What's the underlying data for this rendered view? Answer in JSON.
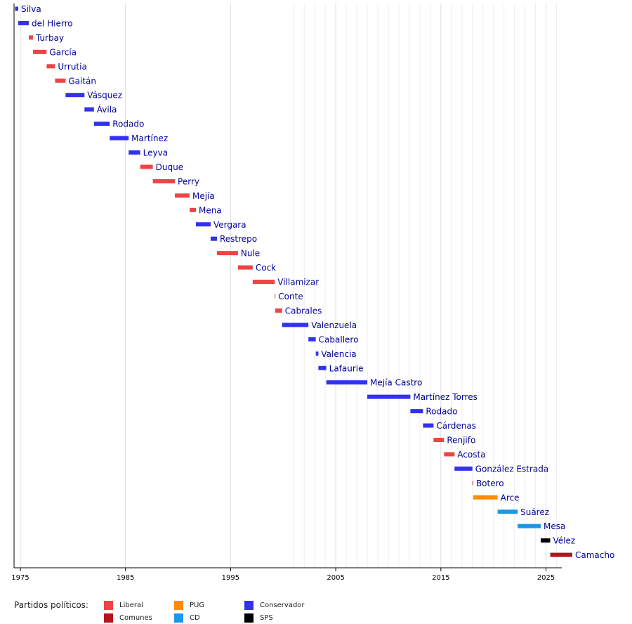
{
  "chart_data": {
    "type": "timeline",
    "title": "",
    "xlabel": "",
    "ylabel": "",
    "xlim": [
      1974.4,
      2026.5
    ],
    "x_ticks": [
      1975,
      1985,
      1995,
      2005,
      2015,
      2025
    ],
    "grid": "vertical",
    "legend_placement": "bottom",
    "bars": [
      {
        "name": "Silva",
        "party": "Conservador",
        "start": 1974.5,
        "end": 1974.8
      },
      {
        "name": "del Hierro",
        "party": "Conservador",
        "start": 1974.8,
        "end": 1975.8
      },
      {
        "name": "Turbay",
        "party": "Liberal",
        "start": 1975.8,
        "end": 1976.2
      },
      {
        "name": "García",
        "party": "Liberal",
        "start": 1976.2,
        "end": 1977.5
      },
      {
        "name": "Urrutia",
        "party": "Liberal",
        "start": 1977.5,
        "end": 1978.3
      },
      {
        "name": "Gaitán",
        "party": "Liberal",
        "start": 1978.3,
        "end": 1979.3
      },
      {
        "name": "Vásquez",
        "party": "Conservador",
        "start": 1979.3,
        "end": 1981.1
      },
      {
        "name": "Ávila",
        "party": "Conservador",
        "start": 1981.1,
        "end": 1982.0
      },
      {
        "name": "Rodado",
        "party": "Conservador",
        "start": 1982.0,
        "end": 1983.5
      },
      {
        "name": "Martínez",
        "party": "Conservador",
        "start": 1983.5,
        "end": 1985.3
      },
      {
        "name": "Leyva",
        "party": "Conservador",
        "start": 1985.3,
        "end": 1986.4
      },
      {
        "name": "Duque",
        "party": "Liberal",
        "start": 1986.4,
        "end": 1987.6
      },
      {
        "name": "Perry",
        "party": "Liberal",
        "start": 1987.6,
        "end": 1989.7
      },
      {
        "name": "Mejía",
        "party": "Liberal",
        "start": 1989.7,
        "end": 1991.1
      },
      {
        "name": "Mena",
        "party": "Liberal",
        "start": 1991.1,
        "end": 1991.7
      },
      {
        "name": "Vergara",
        "party": "Conservador",
        "start": 1991.7,
        "end": 1993.1
      },
      {
        "name": "Restrepo",
        "party": "Conservador",
        "start": 1993.1,
        "end": 1993.7
      },
      {
        "name": "Nule",
        "party": "Liberal",
        "start": 1993.7,
        "end": 1995.7
      },
      {
        "name": "Cock",
        "party": "Liberal",
        "start": 1995.7,
        "end": 1997.1
      },
      {
        "name": "Villamizar",
        "party": "Liberal",
        "start": 1997.1,
        "end": 1999.2
      },
      {
        "name": "Conte",
        "party": "Liberal",
        "start": 1999.2,
        "end": 1999.25
      },
      {
        "name": "Cabrales",
        "party": "Liberal",
        "start": 1999.25,
        "end": 1999.9
      },
      {
        "name": "Valenzuela",
        "party": "Conservador",
        "start": 1999.9,
        "end": 2002.4
      },
      {
        "name": "Caballero",
        "party": "Conservador",
        "start": 2002.4,
        "end": 2003.1
      },
      {
        "name": "Valencia",
        "party": "Conservador",
        "start": 2003.1,
        "end": 2003.35
      },
      {
        "name": "Lafaurie",
        "party": "Conservador",
        "start": 2003.35,
        "end": 2004.1
      },
      {
        "name": "Mejía Castro",
        "party": "Conservador",
        "start": 2004.1,
        "end": 2008.0
      },
      {
        "name": "Martínez Torres",
        "party": "Conservador",
        "start": 2008.0,
        "end": 2012.1
      },
      {
        "name": "Rodado",
        "party": "Conservador",
        "start": 2012.1,
        "end": 2013.3
      },
      {
        "name": "Cárdenas",
        "party": "Conservador",
        "start": 2013.3,
        "end": 2014.3
      },
      {
        "name": "Renjifo",
        "party": "Liberal",
        "start": 2014.3,
        "end": 2015.3
      },
      {
        "name": "Acosta",
        "party": "Liberal",
        "start": 2015.3,
        "end": 2016.3
      },
      {
        "name": "González Estrada",
        "party": "Conservador",
        "start": 2016.3,
        "end": 2018.0
      },
      {
        "name": "Botero",
        "party": "Liberal",
        "start": 2018.0,
        "end": 2018.08
      },
      {
        "name": "Arce",
        "party": "PUG",
        "start": 2018.08,
        "end": 2020.4
      },
      {
        "name": "Suárez",
        "party": "CD",
        "start": 2020.4,
        "end": 2022.3
      },
      {
        "name": "Mesa",
        "party": "CD",
        "start": 2022.3,
        "end": 2024.5
      },
      {
        "name": "Vélez",
        "party": "SPS",
        "start": 2024.5,
        "end": 2025.4
      },
      {
        "name": "Camacho",
        "party": "Comunes",
        "start": 2025.4,
        "end": 2027.5
      }
    ],
    "legend": {
      "title": "Partidos políticos:",
      "entries": [
        {
          "name": "Liberal",
          "color": "#ee4444"
        },
        {
          "name": "Comunes",
          "color": "#b4141e"
        },
        {
          "name": "PUG",
          "color": "#ff8c00"
        },
        {
          "name": "CD",
          "color": "#1e96e6"
        },
        {
          "name": "Conservador",
          "color": "#3232ee"
        },
        {
          "name": "SPS",
          "color": "#000000"
        }
      ]
    }
  }
}
